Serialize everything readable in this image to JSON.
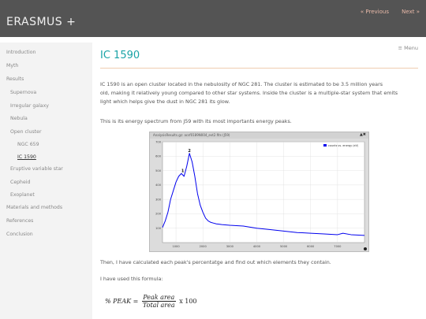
{
  "header": {
    "site_title": "ERASMUS +",
    "prev_label": "« Previous",
    "next_label": "Next »"
  },
  "sidebar": {
    "items": [
      {
        "label": "Introduction"
      },
      {
        "label": "Myth"
      },
      {
        "label": "Results"
      },
      {
        "label": "Supernova"
      },
      {
        "label": "Irregular galaxy"
      },
      {
        "label": "Nebula"
      },
      {
        "label": "Open cluster"
      },
      {
        "label": "NGC 659"
      },
      {
        "label": "IC 1590"
      },
      {
        "label": "Eruptive variable star"
      },
      {
        "label": "Cepheid"
      },
      {
        "label": "Exoplanet"
      },
      {
        "label": "Materials and methods"
      },
      {
        "label": "References"
      },
      {
        "label": "Conclusion"
      }
    ]
  },
  "menu_label": "≡ Menu",
  "main": {
    "title": "IC 1590",
    "para1_line1": "IC 1590 is an open cluster located in the nebulosity of NGC 281. The cluster is estimated to be 3.5 million years",
    "para1_line2": "old, making it relatively young compared to other star systems. Inside the cluster is a multiple-star system that emits",
    "para1_line3": "light which helps give the dust in NGC 281 its glow.",
    "para2": "This is its energy spectrum from J59 with its most importants energy peaks.",
    "para3": "Then, I have calculated each peak's percentatge and find out which elements they contain.",
    "para4": "I have used this formula:"
  },
  "plot_window": {
    "title": "AnalysisResults.gz: acsf0189N004_evt2.fits (J59)",
    "close_label": "▲✖"
  },
  "chart_data": {
    "type": "line",
    "title": "",
    "xlabel": "",
    "ylabel": "",
    "xlim": [
      500,
      8000
    ],
    "ylim": [
      0,
      700
    ],
    "x_ticks": [
      "1000",
      "2000",
      "3000",
      "4000",
      "5000",
      "6000",
      "7000"
    ],
    "y_ticks": [
      "100",
      "200",
      "300",
      "400",
      "500",
      "600",
      "700"
    ],
    "series": [
      {
        "name": "counts vs. energy (eV)",
        "color": "#0000ee",
        "x": [
          500,
          600,
          700,
          800,
          900,
          1000,
          1100,
          1200,
          1300,
          1400,
          1500,
          1600,
          1700,
          1800,
          1900,
          2000,
          2100,
          2200,
          2300,
          2400,
          2500,
          2600,
          2700,
          3000,
          3500,
          4000,
          4500,
          5000,
          5500,
          6000,
          6500,
          7000,
          7200,
          7500,
          8000
        ],
        "y": [
          105,
          150,
          210,
          300,
          360,
          420,
          460,
          480,
          460,
          530,
          620,
          560,
          460,
          340,
          260,
          210,
          170,
          150,
          140,
          135,
          130,
          128,
          125,
          120,
          115,
          100,
          90,
          80,
          70,
          65,
          60,
          55,
          65,
          55,
          50
        ]
      }
    ],
    "annotations": [
      {
        "text": "1",
        "x": 1250,
        "y": 490
      },
      {
        "text": "2",
        "x": 1500,
        "y": 630
      }
    ],
    "grid": true,
    "legend": "top-right"
  },
  "formula": {
    "lhs": "% PEAK =",
    "numerator": "Peak area",
    "denominator": "Total area",
    "rhs": "x 100"
  }
}
